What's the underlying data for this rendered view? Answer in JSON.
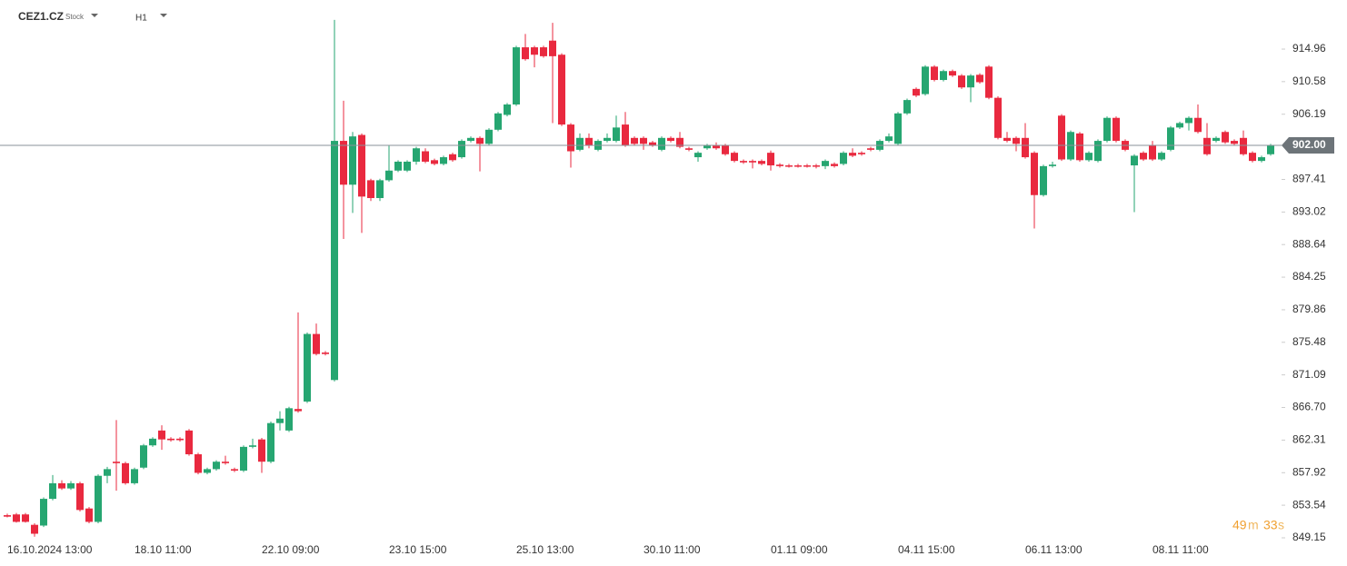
{
  "header": {
    "symbol": "CEZ1.CZ",
    "kind": "Stock",
    "timeframe": "H1"
  },
  "countdown": {
    "minutes": "49",
    "m": "m",
    "seconds": "33",
    "s": "s"
  },
  "chart_data": {
    "type": "candlestick",
    "up_color": "#26a671",
    "down_color": "#e9293f",
    "ylim": [
      848.17,
      921.57
    ],
    "yticks": [
      914.96,
      910.58,
      906.19,
      897.41,
      893.02,
      888.64,
      884.25,
      879.86,
      875.48,
      871.09,
      {
        "value": 866.7,
        "label": "866.70"
      },
      862.31,
      857.92,
      853.54,
      849.15
    ],
    "current_price": {
      "value": 902.0,
      "label": "902.00"
    },
    "categories": [
      "16.10.2024 13:00",
      null,
      null,
      null,
      null,
      null,
      null,
      null,
      null,
      null,
      null,
      null,
      null,
      null,
      "18.10 11:00",
      null,
      null,
      null,
      null,
      null,
      null,
      null,
      null,
      null,
      null,
      null,
      null,
      null,
      "22.10 09:00",
      null,
      null,
      null,
      null,
      null,
      null,
      null,
      null,
      null,
      null,
      null,
      null,
      null,
      "23.10 15:00",
      null,
      null,
      null,
      null,
      null,
      null,
      null,
      null,
      null,
      null,
      null,
      null,
      null,
      "25.10 13:00",
      null,
      null,
      null,
      null,
      null,
      null,
      null,
      null,
      null,
      null,
      null,
      null,
      null,
      "30.10 11:00",
      null,
      null,
      null,
      null,
      null,
      null,
      null,
      null,
      null,
      null,
      null,
      null,
      null,
      "01.11 09:00",
      null,
      null,
      null,
      null,
      null,
      null,
      null,
      null,
      null,
      null,
      null,
      null,
      null,
      "04.11 15:00",
      null,
      null,
      null,
      null,
      null,
      null,
      null,
      null,
      null,
      null,
      null,
      null,
      null,
      "06.11 13:00",
      null,
      null,
      null,
      null,
      null,
      null,
      null,
      null,
      null,
      null,
      null,
      null,
      null,
      "08.11 11:00",
      null,
      null,
      null,
      null,
      null,
      null,
      null,
      null,
      null,
      null,
      null,
      null,
      null
    ],
    "ohlc": [
      [
        852.2,
        852.4,
        851.9,
        852.0
      ],
      [
        852.3,
        852.5,
        851.2,
        851.3
      ],
      [
        852.3,
        852.5,
        851.2,
        851.3
      ],
      [
        850.9,
        851.1,
        849.3,
        849.7
      ],
      [
        850.8,
        854.6,
        850.6,
        854.4
      ],
      [
        854.4,
        857.6,
        854.2,
        856.5
      ],
      [
        856.5,
        856.9,
        855.6,
        855.8
      ],
      [
        855.8,
        856.8,
        855.6,
        856.5
      ],
      [
        856.5,
        856.7,
        852.7,
        852.9
      ],
      [
        853.1,
        853.3,
        851.1,
        851.3
      ],
      [
        851.3,
        857.7,
        851.1,
        857.5
      ],
      [
        857.5,
        858.7,
        856.5,
        858.4
      ],
      [
        859.4,
        865.0,
        855.5,
        859.2
      ],
      [
        859.2,
        859.4,
        856.3,
        856.5
      ],
      [
        856.5,
        858.6,
        856.3,
        858.4
      ],
      [
        858.6,
        861.8,
        858.4,
        861.6
      ],
      [
        861.6,
        862.7,
        861.4,
        862.5
      ],
      [
        863.6,
        864.3,
        861.0,
        862.4
      ],
      [
        862.5,
        862.7,
        862.1,
        862.3
      ],
      [
        862.5,
        862.7,
        862.1,
        862.3
      ],
      [
        863.6,
        863.8,
        860.2,
        860.4
      ],
      [
        860.4,
        860.6,
        857.7,
        857.9
      ],
      [
        857.9,
        858.6,
        857.7,
        858.4
      ],
      [
        858.4,
        859.6,
        858.2,
        859.4
      ],
      [
        859.4,
        860.2,
        859.0,
        859.2
      ],
      [
        858.4,
        858.6,
        858.0,
        858.2
      ],
      [
        858.2,
        861.6,
        858.0,
        861.4
      ],
      [
        861.4,
        862.5,
        861.2,
        861.6
      ],
      [
        862.4,
        862.6,
        857.9,
        859.4
      ],
      [
        859.4,
        864.8,
        859.2,
        864.6
      ],
      [
        864.6,
        866.2,
        863.6,
        865.2
      ],
      [
        863.6,
        866.8,
        863.4,
        866.6
      ],
      [
        866.5,
        879.5,
        866.0,
        866.2
      ],
      [
        867.5,
        876.8,
        867.3,
        876.6
      ],
      [
        876.6,
        878.0,
        873.7,
        873.9
      ],
      [
        874.1,
        874.3,
        873.7,
        873.9
      ],
      [
        870.4,
        918.9,
        870.2,
        902.6
      ],
      [
        902.6,
        908.0,
        889.4,
        896.7
      ],
      [
        896.7,
        903.8,
        892.9,
        903.2
      ],
      [
        903.4,
        903.6,
        890.2,
        895.1
      ],
      [
        897.3,
        897.5,
        894.5,
        894.9
      ],
      [
        894.9,
        897.5,
        894.5,
        897.3
      ],
      [
        897.3,
        902.0,
        897.1,
        898.6
      ],
      [
        898.6,
        900.0,
        898.4,
        899.8
      ],
      [
        898.6,
        900.0,
        898.4,
        899.8
      ],
      [
        899.8,
        901.8,
        899.4,
        901.6
      ],
      [
        901.2,
        901.6,
        899.6,
        899.8
      ],
      [
        900.0,
        900.2,
        899.3,
        899.5
      ],
      [
        899.5,
        900.6,
        899.3,
        900.4
      ],
      [
        900.8,
        901.0,
        899.8,
        900.0
      ],
      [
        900.4,
        902.8,
        900.2,
        902.6
      ],
      [
        902.6,
        903.2,
        902.4,
        903.0
      ],
      [
        903.0,
        903.2,
        898.5,
        902.2
      ],
      [
        902.2,
        904.3,
        902.0,
        904.1
      ],
      [
        904.1,
        906.5,
        903.9,
        906.3
      ],
      [
        906.1,
        907.7,
        905.9,
        907.5
      ],
      [
        907.5,
        915.4,
        907.3,
        915.2
      ],
      [
        915.2,
        917.0,
        913.4,
        913.6
      ],
      [
        915.2,
        915.4,
        912.5,
        914.2
      ],
      [
        915.2,
        915.4,
        913.8,
        914.0
      ],
      [
        916.1,
        918.5,
        905.0,
        914.0
      ],
      [
        914.2,
        914.4,
        904.6,
        904.8
      ],
      [
        904.8,
        905.0,
        899.0,
        901.2
      ],
      [
        901.4,
        903.6,
        901.2,
        903.0
      ],
      [
        903.0,
        903.6,
        901.6,
        902.0
      ],
      [
        901.4,
        902.8,
        901.2,
        902.6
      ],
      [
        902.6,
        903.6,
        902.4,
        903.0
      ],
      [
        902.6,
        906.0,
        902.4,
        904.4
      ],
      [
        904.8,
        906.5,
        901.8,
        902.0
      ],
      [
        903.0,
        903.2,
        902.0,
        902.2
      ],
      [
        903.0,
        903.2,
        901.4,
        902.2
      ],
      [
        902.4,
        902.6,
        901.8,
        902.0
      ],
      [
        901.4,
        903.2,
        901.2,
        903.0
      ],
      [
        903.0,
        903.2,
        902.4,
        902.6
      ],
      [
        903.0,
        903.8,
        901.6,
        901.8
      ],
      [
        901.6,
        901.8,
        901.2,
        901.4
      ],
      [
        900.4,
        901.2,
        899.8,
        901.0
      ],
      [
        901.6,
        902.2,
        901.4,
        902.0
      ],
      [
        902.0,
        902.4,
        901.4,
        901.6
      ],
      [
        902.0,
        902.2,
        900.6,
        900.8
      ],
      [
        901.0,
        901.2,
        899.7,
        899.9
      ],
      [
        899.9,
        900.1,
        899.5,
        899.7
      ],
      [
        899.9,
        900.1,
        898.9,
        899.7
      ],
      [
        899.9,
        900.1,
        899.3,
        899.5
      ],
      [
        901.0,
        901.3,
        898.6,
        899.3
      ],
      [
        899.4,
        899.6,
        899.0,
        899.2
      ],
      [
        899.3,
        899.5,
        899.0,
        899.2
      ],
      [
        899.3,
        899.5,
        899.0,
        899.2
      ],
      [
        899.3,
        899.5,
        899.0,
        899.2
      ],
      [
        899.3,
        899.5,
        898.9,
        899.2
      ],
      [
        899.2,
        900.1,
        898.8,
        899.9
      ],
      [
        899.5,
        899.7,
        899.0,
        899.2
      ],
      [
        899.5,
        901.2,
        899.3,
        901.0
      ],
      [
        901.0,
        901.6,
        900.4,
        900.6
      ],
      [
        901.0,
        901.2,
        900.6,
        900.8
      ],
      [
        901.6,
        901.8,
        901.2,
        901.4
      ],
      [
        901.4,
        902.8,
        901.2,
        902.6
      ],
      [
        902.6,
        903.6,
        902.4,
        903.2
      ],
      [
        902.2,
        906.5,
        902.0,
        906.3
      ],
      [
        906.3,
        908.3,
        906.1,
        908.1
      ],
      [
        909.6,
        909.8,
        908.5,
        908.7
      ],
      [
        908.9,
        912.8,
        908.7,
        912.6
      ],
      [
        912.6,
        912.8,
        910.6,
        910.8
      ],
      [
        910.8,
        912.2,
        910.6,
        912.0
      ],
      [
        912.0,
        912.2,
        911.2,
        911.4
      ],
      [
        911.4,
        911.6,
        909.6,
        909.8
      ],
      [
        909.8,
        911.6,
        907.8,
        911.4
      ],
      [
        911.5,
        911.7,
        910.3,
        910.5
      ],
      [
        912.6,
        912.8,
        908.2,
        908.4
      ],
      [
        908.4,
        908.6,
        902.8,
        903.0
      ],
      [
        903.0,
        903.8,
        902.4,
        902.6
      ],
      [
        903.0,
        903.2,
        901.2,
        902.2
      ],
      [
        903.0,
        905.0,
        900.2,
        900.4
      ],
      [
        901.0,
        901.2,
        890.8,
        895.3
      ],
      [
        895.3,
        899.4,
        895.1,
        899.2
      ],
      [
        899.2,
        899.8,
        899.0,
        899.4
      ],
      [
        906.0,
        906.2,
        899.9,
        900.1
      ],
      [
        900.1,
        904.0,
        899.9,
        903.8
      ],
      [
        903.6,
        903.8,
        899.8,
        900.0
      ],
      [
        900.0,
        901.2,
        899.8,
        901.0
      ],
      [
        899.9,
        902.8,
        899.7,
        902.6
      ],
      [
        902.6,
        905.9,
        902.4,
        905.7
      ],
      [
        905.7,
        905.9,
        902.4,
        902.6
      ],
      [
        902.6,
        902.8,
        901.2,
        901.4
      ],
      [
        899.3,
        900.8,
        893.0,
        900.6
      ],
      [
        901.0,
        901.2,
        899.9,
        900.1
      ],
      [
        902.0,
        902.6,
        899.9,
        900.1
      ],
      [
        900.1,
        901.2,
        899.9,
        901.0
      ],
      [
        901.4,
        904.6,
        901.2,
        904.4
      ],
      [
        904.4,
        905.2,
        904.2,
        905.0
      ],
      [
        905.0,
        905.9,
        904.0,
        905.7
      ],
      [
        905.7,
        907.5,
        903.6,
        903.8
      ],
      [
        903.0,
        905.0,
        900.6,
        900.8
      ],
      [
        902.6,
        903.2,
        902.4,
        903.0
      ],
      [
        903.8,
        904.0,
        902.2,
        902.4
      ],
      [
        902.6,
        902.8,
        902.0,
        902.2
      ],
      [
        903.0,
        904.0,
        900.6,
        900.8
      ],
      [
        901.0,
        901.2,
        899.7,
        899.9
      ],
      [
        899.9,
        900.6,
        899.7,
        900.4
      ],
      [
        900.8,
        902.2,
        900.6,
        902.0
      ]
    ]
  }
}
